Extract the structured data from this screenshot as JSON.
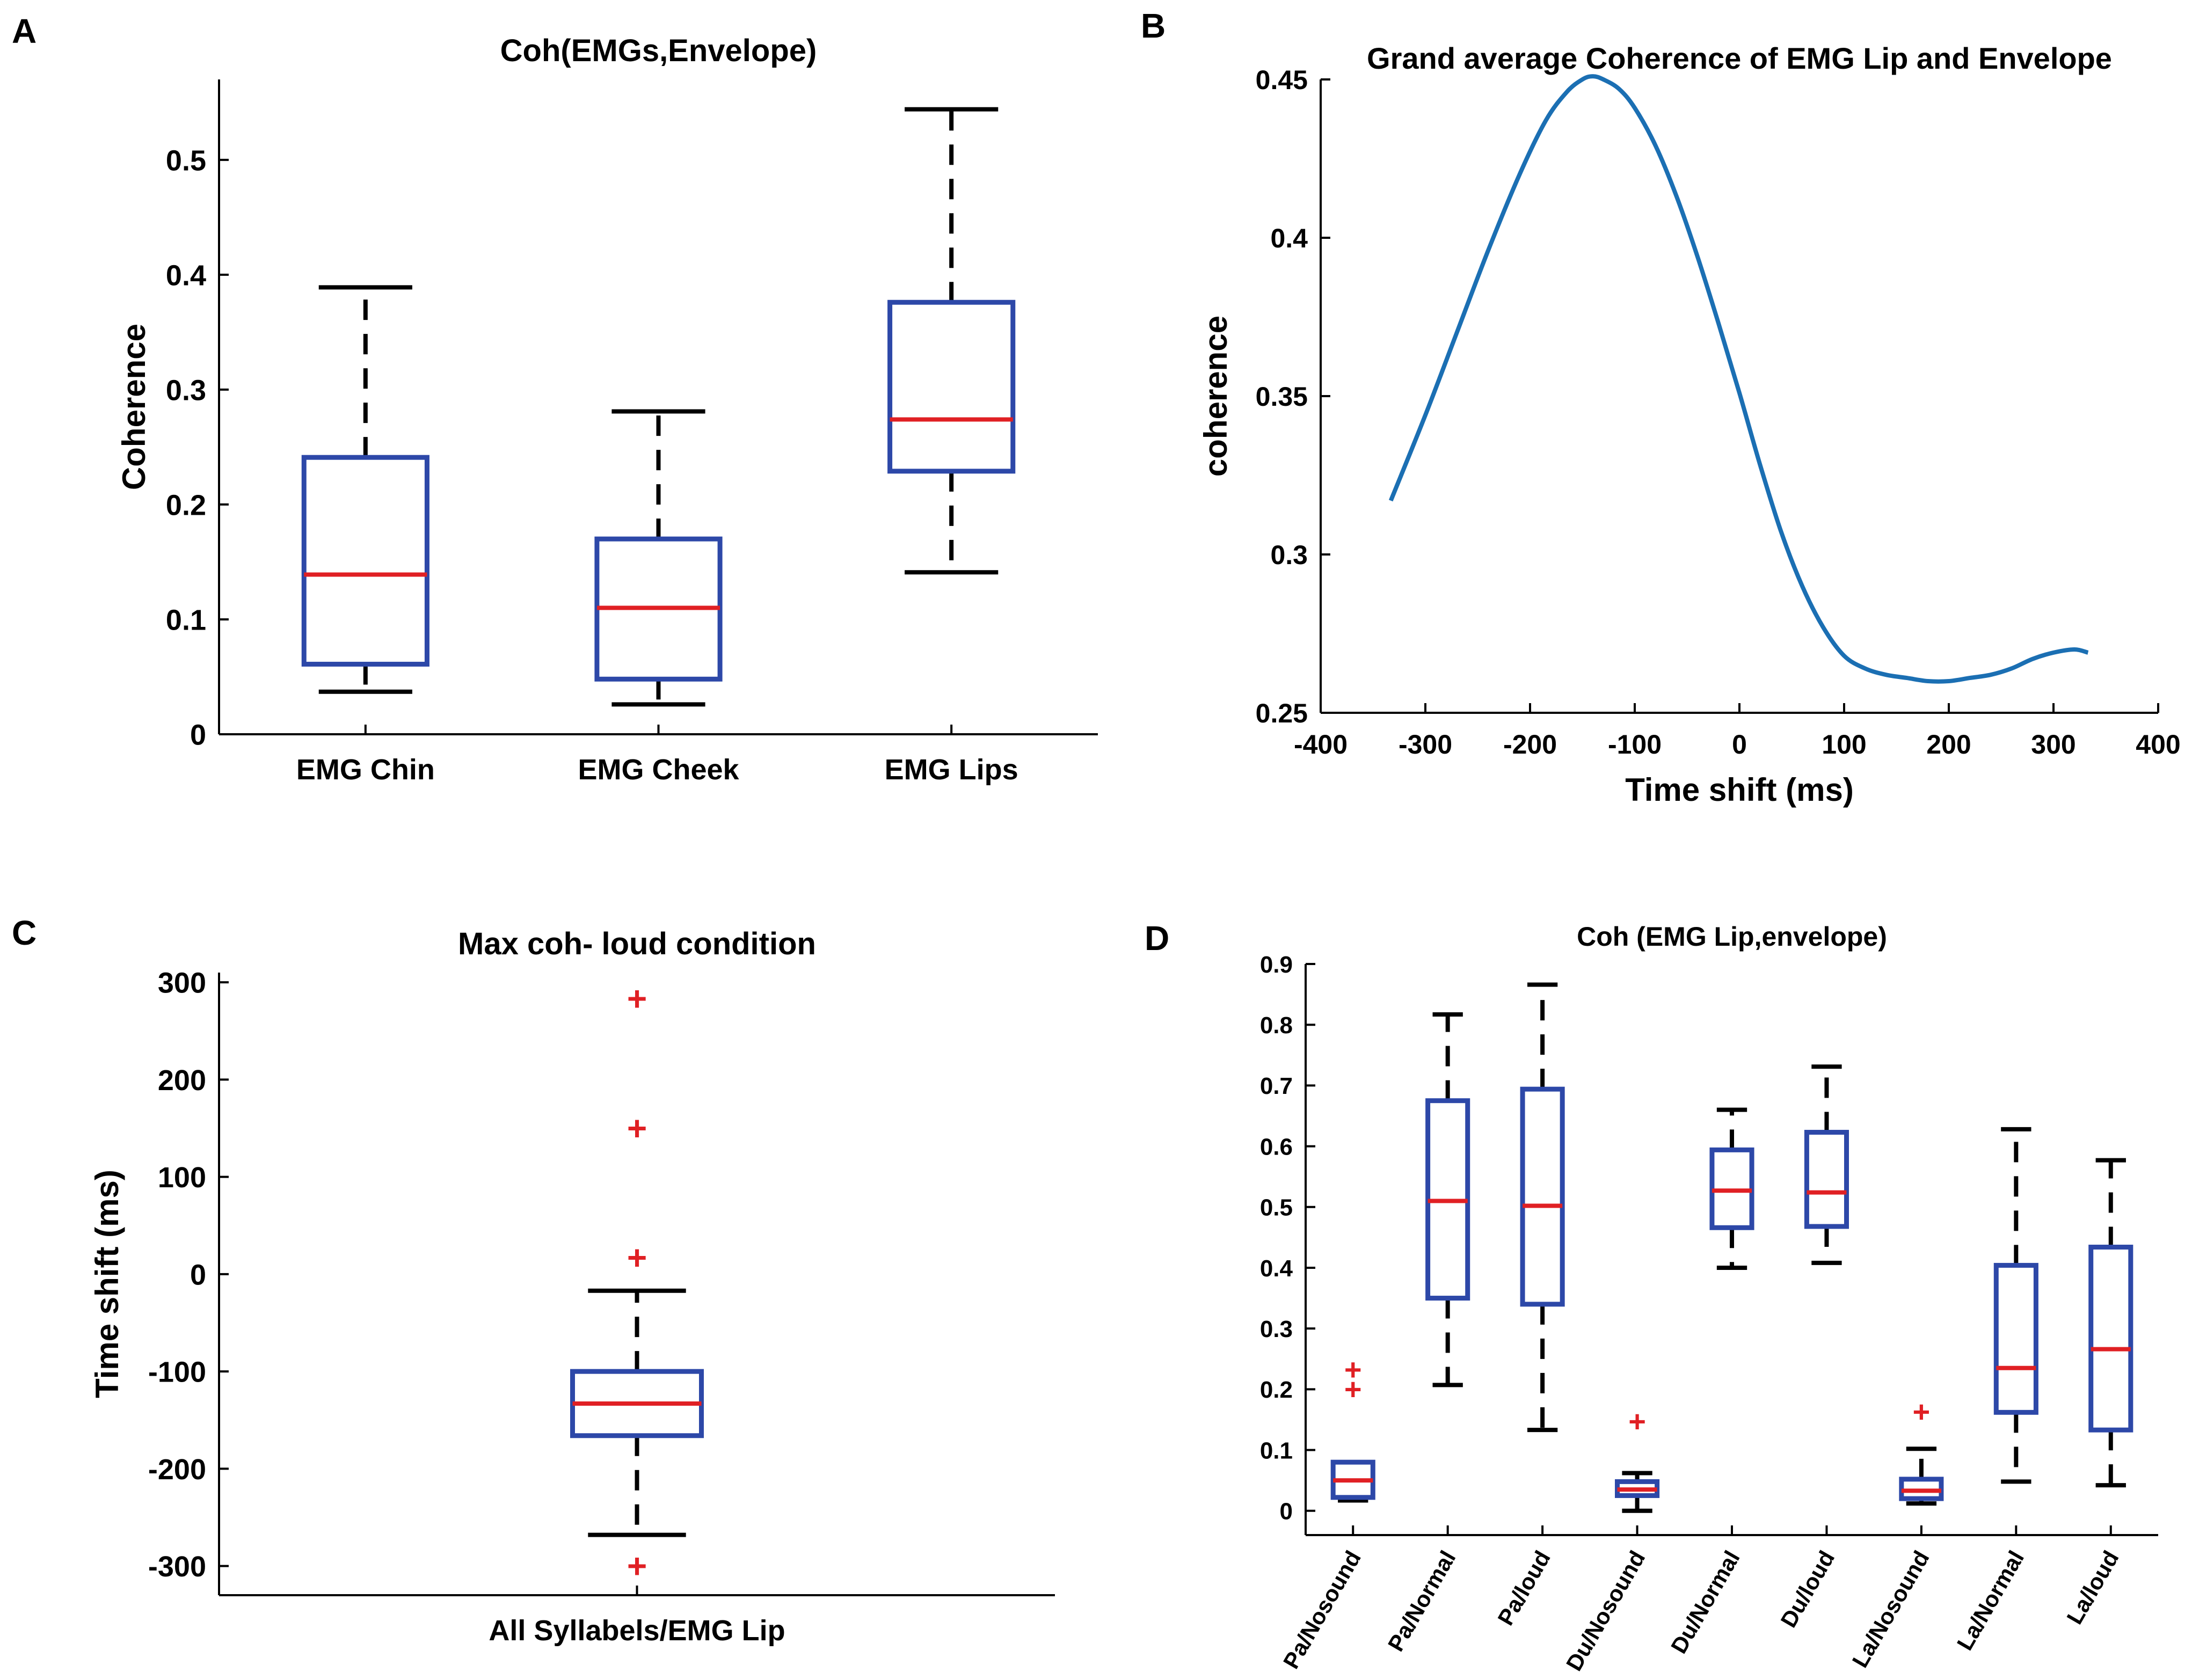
{
  "panels": {
    "a": {
      "letter": "A"
    },
    "b": {
      "letter": "B"
    },
    "c": {
      "letter": "C"
    },
    "d": {
      "letter": "D"
    }
  },
  "chart_data": [
    {
      "id": "A",
      "type": "box",
      "title": "Coh(EMGs,Envelope)",
      "xlabel": "",
      "ylabel": "Coherence",
      "ylim": [
        0,
        0.57
      ],
      "yticks": [
        0,
        0.1,
        0.2,
        0.3,
        0.4,
        0.5
      ],
      "ytick_labels": [
        "0",
        "0.1",
        "0.2",
        "0.3",
        "0.4",
        "0.5"
      ],
      "categories": [
        "EMG Chin",
        "EMG Cheek",
        "EMG Lips"
      ],
      "boxes": [
        {
          "min": 0.037,
          "q1": 0.061,
          "median": 0.139,
          "q3": 0.241,
          "max": 0.389,
          "outliers": []
        },
        {
          "min": 0.026,
          "q1": 0.048,
          "median": 0.11,
          "q3": 0.17,
          "max": 0.281,
          "outliers": []
        },
        {
          "min": 0.141,
          "q1": 0.229,
          "median": 0.274,
          "q3": 0.376,
          "max": 0.544,
          "outliers": []
        }
      ]
    },
    {
      "id": "B",
      "type": "line",
      "title": "Grand average Coherence of EMG Lip and Envelope",
      "xlabel": "Time shift (ms)",
      "ylabel": "coherence",
      "xlim": [
        -400,
        400
      ],
      "ylim": [
        0.25,
        0.45
      ],
      "xticks": [
        -400,
        -300,
        -200,
        -100,
        0,
        100,
        200,
        300,
        400
      ],
      "xtick_labels": [
        "-400",
        "-300",
        "-200",
        "-100",
        "0",
        "100",
        "200",
        "300",
        "400"
      ],
      "yticks": [
        0.25,
        0.3,
        0.35,
        0.4,
        0.45
      ],
      "ytick_labels": [
        "0.25",
        "0.3",
        "0.35",
        "0.4",
        "0.45"
      ],
      "series": [
        {
          "name": "coherence",
          "x": [
            -333,
            -300,
            -270,
            -240,
            -210,
            -185,
            -165,
            -150,
            -140,
            -130,
            -115,
            -100,
            -80,
            -60,
            -40,
            -20,
            0,
            20,
            40,
            60,
            80,
            100,
            120,
            140,
            160,
            180,
            200,
            220,
            240,
            260,
            280,
            300,
            320,
            333
          ],
          "y": [
            0.317,
            0.344,
            0.37,
            0.396,
            0.42,
            0.437,
            0.446,
            0.45,
            0.451,
            0.45,
            0.447,
            0.441,
            0.429,
            0.413,
            0.394,
            0.373,
            0.351,
            0.328,
            0.307,
            0.29,
            0.277,
            0.268,
            0.264,
            0.262,
            0.261,
            0.26,
            0.26,
            0.261,
            0.262,
            0.264,
            0.267,
            0.269,
            0.27,
            0.269
          ]
        }
      ]
    },
    {
      "id": "C",
      "type": "box",
      "title": "Max coh- loud condition",
      "xlabel": "",
      "ylabel": "Time shift (ms)",
      "ylim": [
        -330,
        310
      ],
      "yticks": [
        -300,
        -200,
        -100,
        0,
        100,
        200,
        300
      ],
      "ytick_labels": [
        "-300",
        "-200",
        "-100",
        "0",
        "100",
        "200",
        "300"
      ],
      "categories": [
        "All Syllabels/EMG Lip"
      ],
      "boxes": [
        {
          "min": -268,
          "q1": -166,
          "median": -133,
          "q3": -100,
          "max": -17,
          "outliers": [
            283,
            150,
            17,
            -300
          ]
        }
      ]
    },
    {
      "id": "D",
      "type": "box",
      "title": "Coh (EMG Lip,envelope)",
      "xlabel": "",
      "ylabel": "",
      "ylim": [
        -0.04,
        0.9
      ],
      "yticks": [
        0,
        0.1,
        0.2,
        0.3,
        0.4,
        0.5,
        0.6,
        0.7,
        0.8,
        0.9
      ],
      "ytick_labels": [
        "0",
        "0.1",
        "0.2",
        "0.3",
        "0.4",
        "0.5",
        "0.6",
        "0.7",
        "0.8",
        "0.9"
      ],
      "categories": [
        "Pa/Nosound",
        "Pa/Normal",
        "Pa/loud",
        "Du/Nosound",
        "Du/Normal",
        "Du/loud",
        "La/Nosound",
        "La/Normal",
        "La/loud"
      ],
      "boxes": [
        {
          "min": 0.017,
          "q1": 0.022,
          "median": 0.05,
          "q3": 0.08,
          "max": 0.08,
          "outliers": [
            0.232,
            0.2
          ]
        },
        {
          "min": 0.207,
          "q1": 0.35,
          "median": 0.51,
          "q3": 0.675,
          "max": 0.817,
          "outliers": []
        },
        {
          "min": 0.133,
          "q1": 0.34,
          "median": 0.502,
          "q3": 0.694,
          "max": 0.866,
          "outliers": []
        },
        {
          "min": 0.0,
          "q1": 0.025,
          "median": 0.035,
          "q3": 0.048,
          "max": 0.062,
          "outliers": [
            0.147
          ]
        },
        {
          "min": 0.4,
          "q1": 0.466,
          "median": 0.527,
          "q3": 0.594,
          "max": 0.66,
          "outliers": []
        },
        {
          "min": 0.408,
          "q1": 0.468,
          "median": 0.524,
          "q3": 0.623,
          "max": 0.731,
          "outliers": []
        },
        {
          "min": 0.012,
          "q1": 0.02,
          "median": 0.033,
          "q3": 0.052,
          "max": 0.102,
          "outliers": [
            0.163
          ]
        },
        {
          "min": 0.048,
          "q1": 0.162,
          "median": 0.235,
          "q3": 0.404,
          "max": 0.628,
          "outliers": []
        },
        {
          "min": 0.042,
          "q1": 0.133,
          "median": 0.266,
          "q3": 0.434,
          "max": 0.577,
          "outliers": []
        }
      ]
    }
  ]
}
